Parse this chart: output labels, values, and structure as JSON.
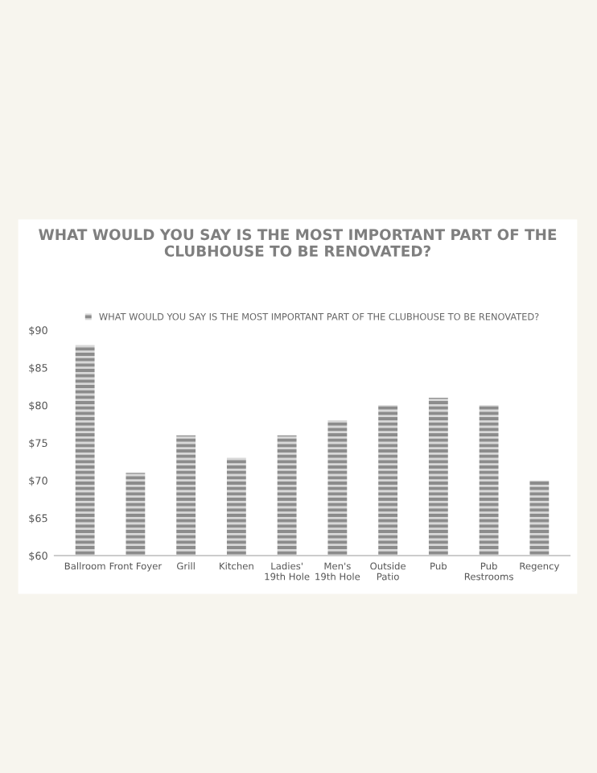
{
  "chart_data": {
    "type": "bar",
    "title": "WHAT WOULD YOU SAY IS THE MOST IMPORTANT PART OF THE CLUBHOUSE TO BE RENOVATED?",
    "categories": [
      "Ballroom",
      "Front Foyer",
      "Grill",
      "Kitchen",
      "Ladies' 19th Hole",
      "Men's 19th Hole",
      "Outside Patio",
      "Pub",
      "Pub Restrooms",
      "Regency"
    ],
    "series": [
      {
        "name": "WHAT WOULD YOU SAY IS THE MOST IMPORTANT PART OF THE CLUBHOUSE TO BE RENOVATED?",
        "color": "#8c8c8c",
        "values": [
          88,
          71,
          76,
          73,
          76,
          78,
          80,
          81,
          80,
          70
        ]
      }
    ],
    "ylim": [
      60,
      90
    ],
    "yticks": [
      {
        "value": 60,
        "label": "$60"
      },
      {
        "value": 65,
        "label": "$65"
      },
      {
        "value": 70,
        "label": "$70"
      },
      {
        "value": 75,
        "label": "$75"
      },
      {
        "value": 80,
        "label": "$80"
      },
      {
        "value": 85,
        "label": "$85"
      },
      {
        "value": 90,
        "label": "$90"
      }
    ],
    "grid": false,
    "legend": "top"
  }
}
